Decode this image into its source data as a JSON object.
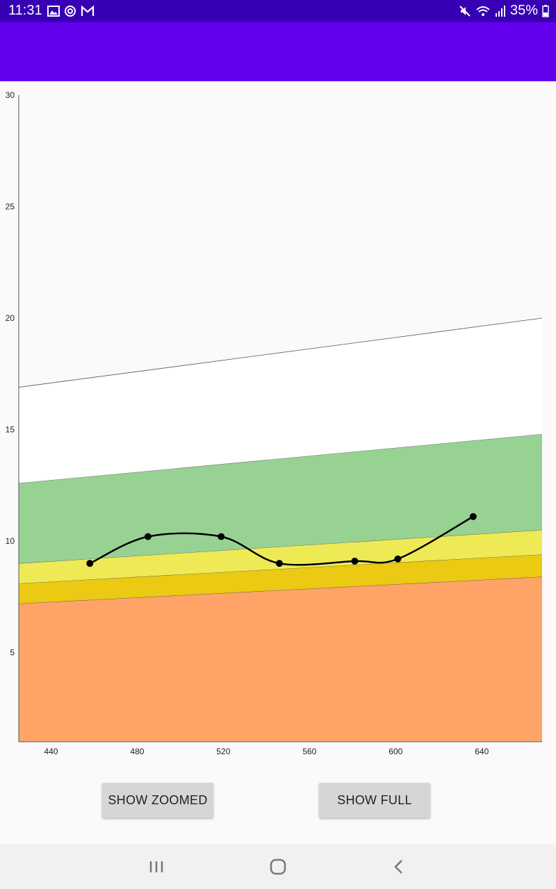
{
  "status_bar": {
    "time": "11:31",
    "battery": "35%",
    "left_icons": [
      "image-icon",
      "sync-icon",
      "gmail-icon"
    ],
    "right_icons": [
      "mute-icon",
      "wifi-icon",
      "signal-icon",
      "battery-icon"
    ]
  },
  "buttons": {
    "zoomed_label": "SHOW ZOOMED",
    "full_label": "SHOW FULL"
  },
  "nav_bar": {
    "icons": [
      "recents-icon",
      "home-icon",
      "back-icon"
    ]
  },
  "chart_data": {
    "type": "line",
    "xlim": [
      425,
      668
    ],
    "ylim": [
      1,
      30
    ],
    "x_ticks": [
      440,
      480,
      520,
      560,
      600,
      640
    ],
    "y_ticks": [
      5,
      10,
      15,
      20,
      25,
      30
    ],
    "grid": false,
    "bands": [
      {
        "color": "#ffa366",
        "lower_y": [
          1,
          1
        ],
        "upper_y": [
          7.2,
          8.4
        ]
      },
      {
        "color": "#ecc913",
        "lower_y": [
          7.2,
          8.4
        ],
        "upper_y": [
          8.1,
          9.4
        ]
      },
      {
        "color": "#eeea55",
        "lower_y": [
          8.1,
          9.4
        ],
        "upper_y": [
          9.0,
          10.5
        ]
      },
      {
        "color": "#98d293",
        "lower_y": [
          9.0,
          10.5
        ],
        "upper_y": [
          12.6,
          14.8
        ]
      },
      {
        "color": "#ffffff",
        "lower_y": [
          12.6,
          14.8
        ],
        "upper_y": [
          16.9,
          20.0
        ]
      }
    ],
    "band_x": [
      425,
      668
    ],
    "series": [
      {
        "x": [
          458,
          485,
          519,
          546,
          581,
          601,
          636
        ],
        "y": [
          9.0,
          10.2,
          10.2,
          9.0,
          9.1,
          9.2,
          11.1
        ]
      }
    ]
  }
}
